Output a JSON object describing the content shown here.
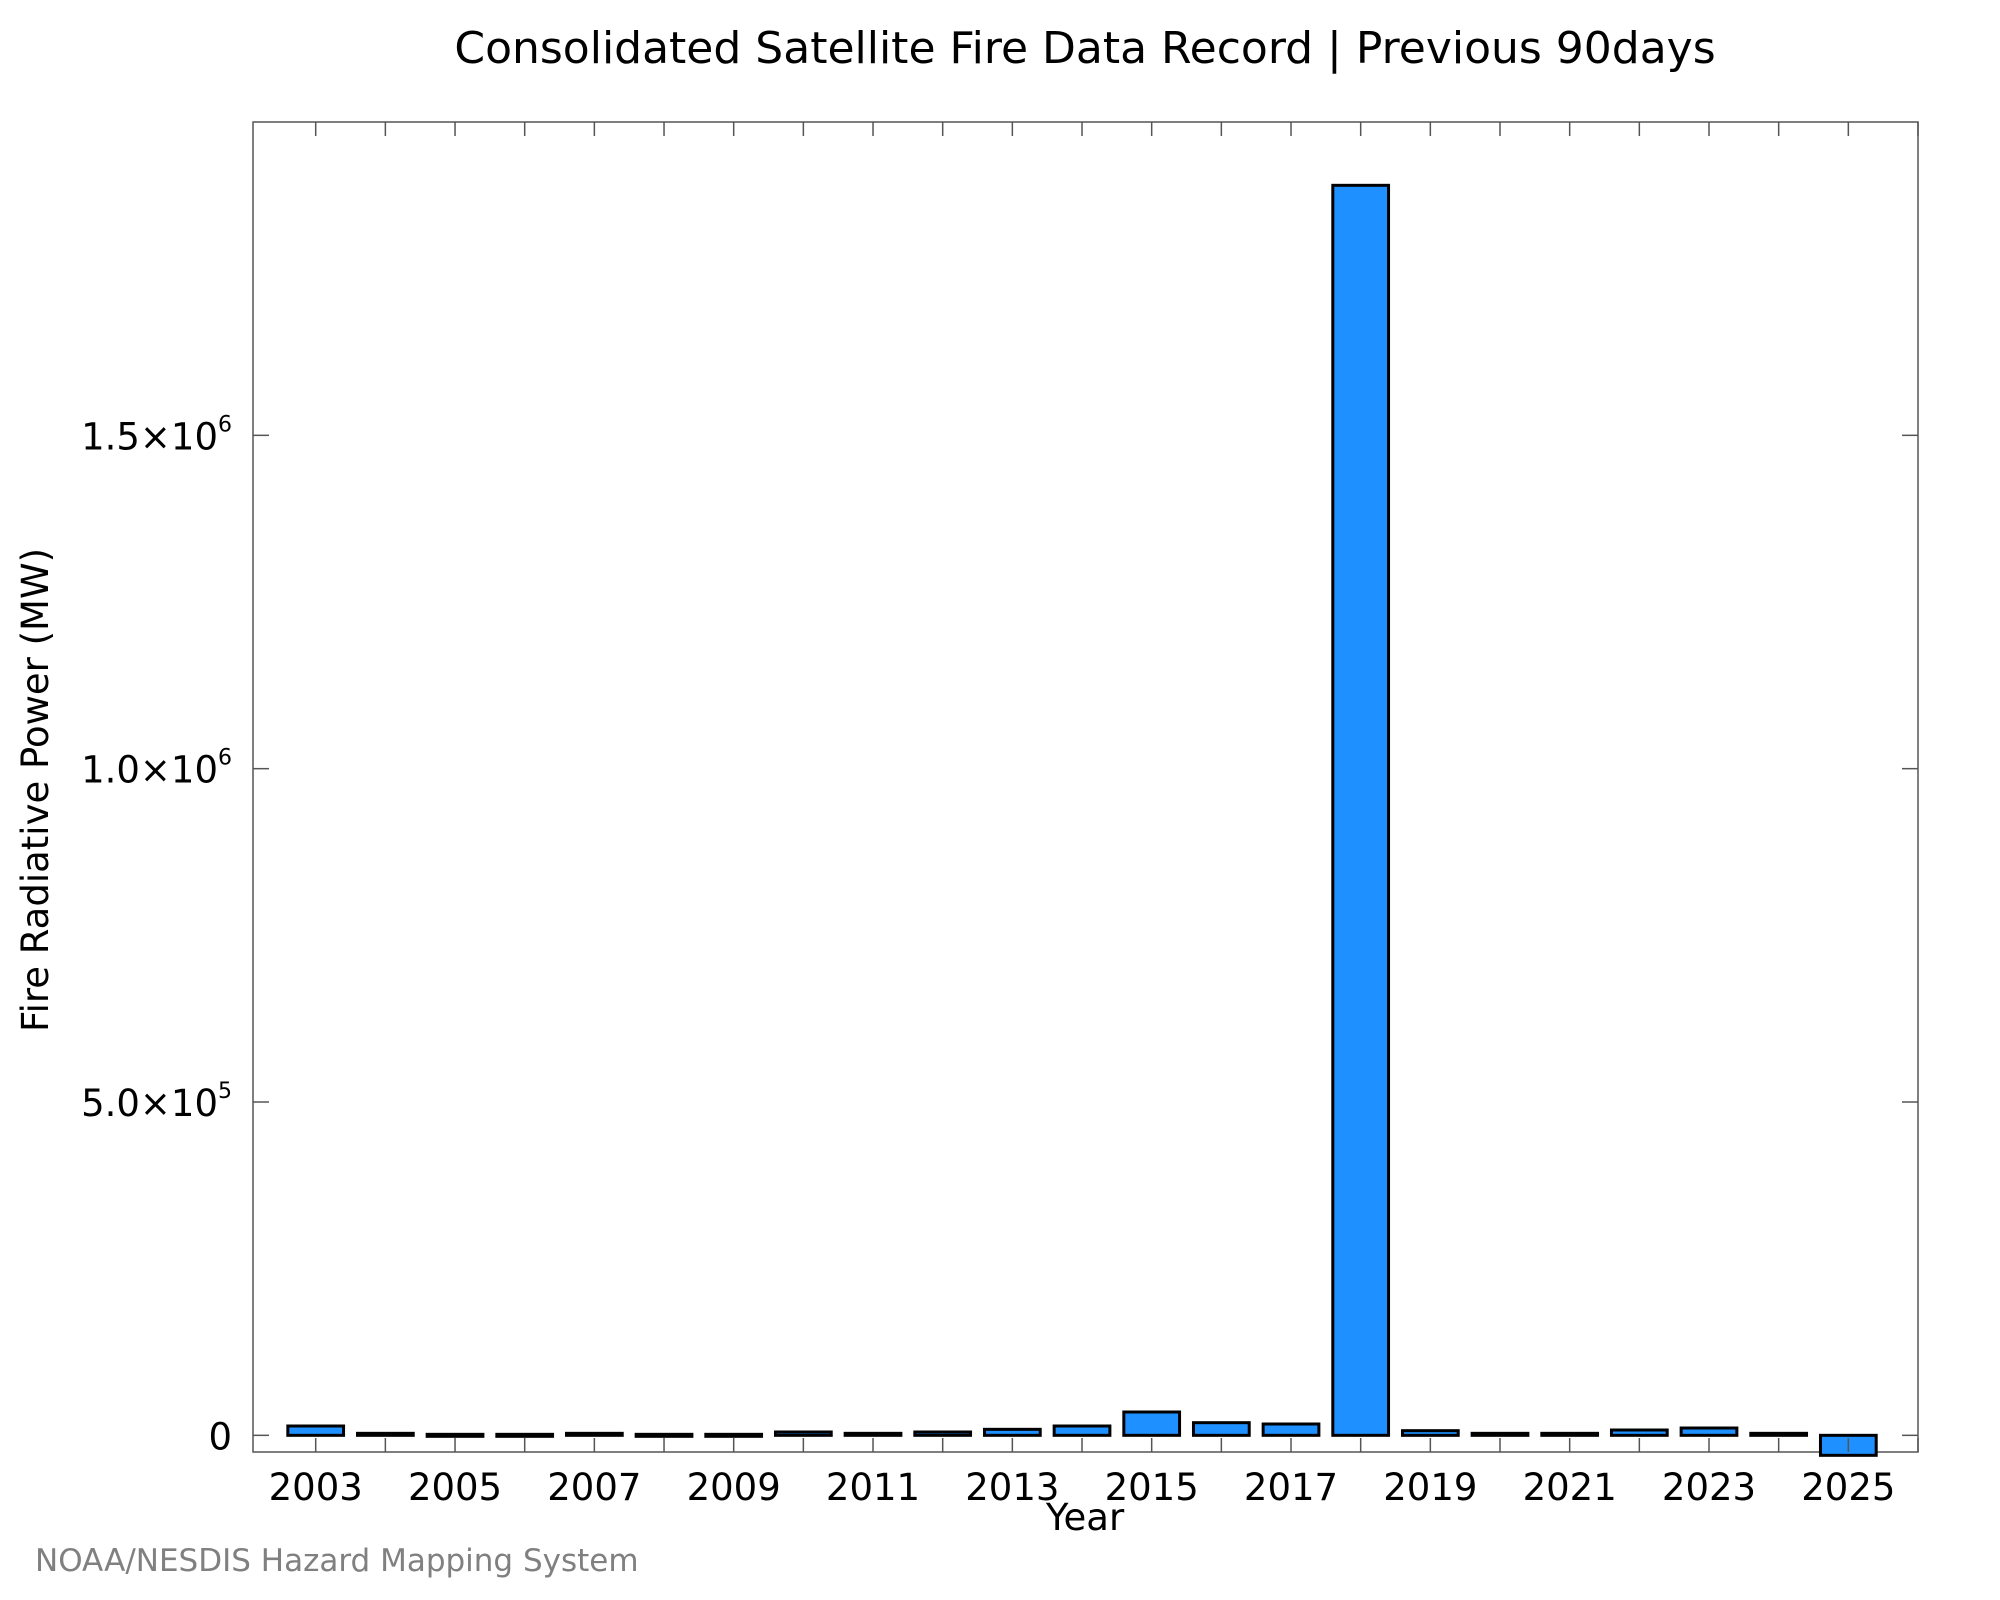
{
  "chart_data": {
    "type": "bar",
    "title": "Consolidated Satellite Fire Data Record | Previous 90days",
    "xlabel": "Year",
    "ylabel": "Fire Radiative Power (MW)",
    "categories": [
      "2003",
      "2004",
      "2005",
      "2006",
      "2007",
      "2008",
      "2009",
      "2010",
      "2011",
      "2012",
      "2013",
      "2014",
      "2015",
      "2016",
      "2017",
      "2018",
      "2019",
      "2020",
      "2021",
      "2022",
      "2023",
      "2024",
      "2025"
    ],
    "values": [
      14000,
      3000,
      1500,
      1800,
      3000,
      1500,
      1500,
      5000,
      3000,
      5000,
      9000,
      14000,
      35000,
      19000,
      17000,
      1875000,
      7000,
      3000,
      3000,
      8000,
      11000,
      3000,
      -30000
    ],
    "ylim": [
      -25000,
      1970000
    ],
    "xlim": [
      2002.1,
      2026.0
    ],
    "y_ticks": [
      {
        "value": 0,
        "mantissa": "0",
        "exponent": ""
      },
      {
        "value": 500000,
        "mantissa": "5.0×10",
        "exponent": "5"
      },
      {
        "value": 1000000,
        "mantissa": "1.0×10",
        "exponent": "6"
      },
      {
        "value": 1500000,
        "mantissa": "1.5×10",
        "exponent": "6"
      }
    ],
    "x_tick_labels": [
      "2003",
      "2005",
      "2007",
      "2009",
      "2011",
      "2013",
      "2015",
      "2017",
      "2019",
      "2021",
      "2023",
      "2025"
    ],
    "x_minor_ticks_every": 1,
    "grid": false,
    "legend": "none",
    "bar_color": "#1E90FF",
    "bar_edge_color": "#000000",
    "credit": "NOAA/NESDIS Hazard Mapping System"
  }
}
